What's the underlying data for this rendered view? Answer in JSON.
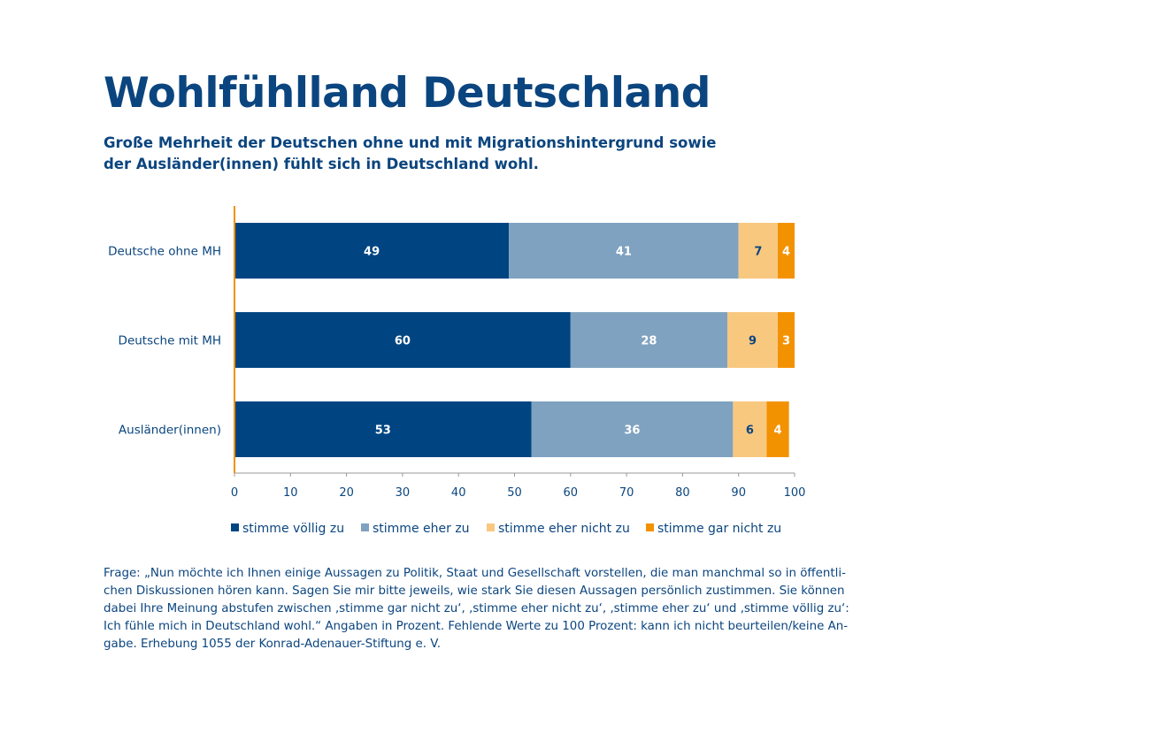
{
  "title": "Wohlfühlland Deutschland",
  "subtitle": "Große Mehrheit der Deutschen ohne und mit Migrationshintergrund sowie der Ausländer(innen) fühlt sich in Deutschland wohl.",
  "chart_data": {
    "type": "bar",
    "orientation": "horizontal",
    "stacked": true,
    "categories": [
      "Deutsche ohne MH",
      "Deutsche mit MH",
      "Ausländer(innen)"
    ],
    "series": [
      {
        "name": "stimme völlig zu",
        "color": "#004582",
        "label_color": "#ffffff",
        "values": [
          49,
          60,
          53
        ]
      },
      {
        "name": "stimme eher zu",
        "color": "#7fa2c0",
        "label_color": "#ffffff",
        "values": [
          41,
          28,
          36
        ]
      },
      {
        "name": "stimme eher nicht zu",
        "color": "#f8c87f",
        "label_color": "#0b457f",
        "values": [
          7,
          9,
          6
        ]
      },
      {
        "name": "stimme gar nicht zu",
        "color": "#f39200",
        "label_color": "#ffffff",
        "values": [
          4,
          3,
          4
        ]
      }
    ],
    "xlim": [
      0,
      100
    ],
    "xticks": [
      "0",
      "10",
      "20",
      "30",
      "40",
      "50",
      "60",
      "70",
      "80",
      "90",
      "100"
    ],
    "grid": false,
    "legend_position": "bottom",
    "axis_color": "#f39200"
  },
  "note": "Frage: „Nun möchte ich Ihnen einige Aussagen zu Politik, Staat und Gesellschaft vorstellen, die man manchmal so in öffentli­chen Diskussionen hören kann. Sagen Sie mir bitte jeweils, wie stark Sie diesen Aussagen persönlich zustimmen. Sie können dabei Ihre Meinung abstufen zwischen ‚stimme gar nicht zu‘, ‚stimme eher nicht zu‘, ‚stimme eher zu‘ und ‚stimme völlig zu‘: Ich fühle mich in Deutschland wohl.“ Angaben in Prozent. Fehlende Werte zu 100 Prozent: kann ich nicht beurteilen/keine An­gabe. Erhebung 1055 der Konrad-Adenauer-Stiftung e. V."
}
